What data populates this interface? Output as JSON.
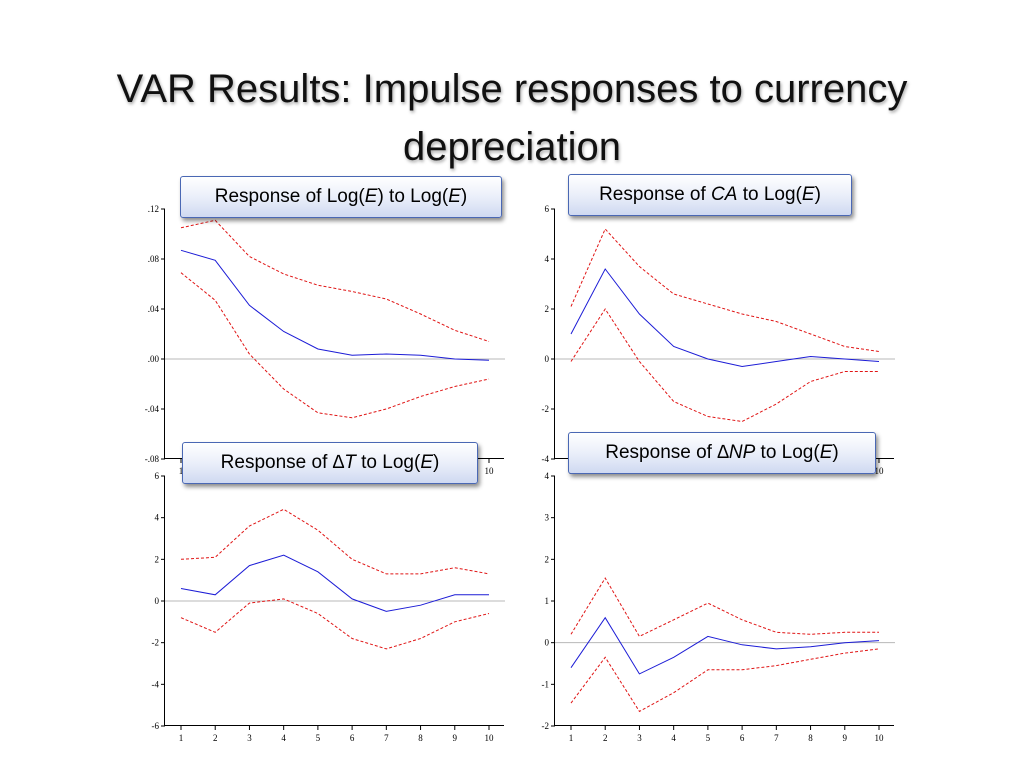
{
  "slide": {
    "title_line1": "VAR Results: Impulse responses to currency",
    "title_line2": "depreciation"
  },
  "colors": {
    "mean": "#1c1cd6",
    "band": "#e01515",
    "zero": "#b8b8b8",
    "axis": "#000000"
  },
  "chart_data": [
    {
      "type": "line",
      "label": {
        "prefix": "Response of ",
        "parts": [
          {
            "t": "Log(",
            "i": false
          },
          {
            "t": "E",
            "i": true
          },
          {
            "t": ") to Log(",
            "i": false
          },
          {
            "t": "E",
            "i": true
          },
          {
            "t": ")",
            "i": false
          }
        ]
      },
      "x": [
        1,
        2,
        3,
        4,
        5,
        6,
        7,
        8,
        9,
        10
      ],
      "ylim": [
        -0.08,
        0.12
      ],
      "yticks": [
        -0.08,
        -0.04,
        0.0,
        0.04,
        0.08,
        0.12
      ],
      "ytick_labels": [
        "-.08",
        "-.04",
        ".00",
        ".04",
        ".08",
        ".12"
      ],
      "series": [
        {
          "role": "upper",
          "values": [
            0.105,
            0.111,
            0.082,
            0.068,
            0.059,
            0.054,
            0.048,
            0.036,
            0.023,
            0.014
          ]
        },
        {
          "role": "mean",
          "values": [
            0.087,
            0.079,
            0.043,
            0.022,
            0.008,
            0.003,
            0.004,
            0.003,
            0.0,
            -0.001
          ]
        },
        {
          "role": "lower",
          "values": [
            0.069,
            0.047,
            0.004,
            -0.024,
            -0.043,
            -0.047,
            -0.04,
            -0.03,
            -0.022,
            -0.016
          ]
        }
      ]
    },
    {
      "type": "line",
      "label": {
        "prefix": "Response of ",
        "parts": [
          {
            "t": "CA",
            "i": true
          },
          {
            "t": " to Log(",
            "i": false
          },
          {
            "t": "E",
            "i": true
          },
          {
            "t": ")",
            "i": false
          }
        ]
      },
      "x": [
        1,
        2,
        3,
        4,
        5,
        6,
        7,
        8,
        9,
        10
      ],
      "ylim": [
        -4,
        6
      ],
      "yticks": [
        -4,
        -2,
        0,
        2,
        4,
        6
      ],
      "ytick_labels": [
        "-4",
        "-2",
        "0",
        "2",
        "4",
        "6"
      ],
      "series": [
        {
          "role": "upper",
          "values": [
            2.1,
            5.2,
            3.7,
            2.6,
            2.2,
            1.8,
            1.5,
            1.0,
            0.5,
            0.3
          ]
        },
        {
          "role": "mean",
          "values": [
            1.0,
            3.6,
            1.8,
            0.5,
            0.0,
            -0.3,
            -0.1,
            0.1,
            0.0,
            -0.1
          ]
        },
        {
          "role": "lower",
          "values": [
            -0.1,
            2.0,
            -0.1,
            -1.7,
            -2.3,
            -2.5,
            -1.8,
            -0.9,
            -0.5,
            -0.5
          ]
        }
      ]
    },
    {
      "type": "line",
      "label": {
        "prefix": "Response of ",
        "parts": [
          {
            "t": "∆T",
            "i": true
          },
          {
            "t": "  to Log(",
            "i": false
          },
          {
            "t": "E",
            "i": true
          },
          {
            "t": ")",
            "i": false
          }
        ]
      },
      "x": [
        1,
        2,
        3,
        4,
        5,
        6,
        7,
        8,
        9,
        10
      ],
      "ylim": [
        -6,
        6
      ],
      "yticks": [
        -6,
        -4,
        -2,
        0,
        2,
        4,
        6
      ],
      "ytick_labels": [
        "-6",
        "-4",
        "-2",
        "0",
        "2",
        "4",
        "6"
      ],
      "series": [
        {
          "role": "upper",
          "values": [
            2.0,
            2.1,
            3.6,
            4.4,
            3.4,
            2.0,
            1.3,
            1.3,
            1.6,
            1.3
          ]
        },
        {
          "role": "mean",
          "values": [
            0.6,
            0.3,
            1.7,
            2.2,
            1.4,
            0.1,
            -0.5,
            -0.2,
            0.3,
            0.3
          ]
        },
        {
          "role": "lower",
          "values": [
            -0.8,
            -1.5,
            -0.1,
            0.1,
            -0.6,
            -1.8,
            -2.3,
            -1.8,
            -1.0,
            -0.6
          ]
        }
      ]
    },
    {
      "type": "line",
      "label": {
        "prefix": "Response of ",
        "parts": [
          {
            "t": "∆NP",
            "i": true
          },
          {
            "t": "  to Log(",
            "i": false
          },
          {
            "t": "E",
            "i": true
          },
          {
            "t": ")",
            "i": false
          }
        ]
      },
      "x": [
        1,
        2,
        3,
        4,
        5,
        6,
        7,
        8,
        9,
        10
      ],
      "ylim": [
        -2,
        4
      ],
      "yticks": [
        -2,
        -1,
        0,
        1,
        2,
        3,
        4
      ],
      "ytick_labels": [
        "-2",
        "-1",
        "0",
        "1",
        "2",
        "3",
        "4"
      ],
      "series": [
        {
          "role": "upper",
          "values": [
            0.2,
            1.55,
            0.15,
            0.55,
            0.95,
            0.55,
            0.25,
            0.2,
            0.25,
            0.25
          ]
        },
        {
          "role": "mean",
          "values": [
            -0.6,
            0.6,
            -0.75,
            -0.35,
            0.15,
            -0.05,
            -0.15,
            -0.1,
            0.0,
            0.05
          ]
        },
        {
          "role": "lower",
          "values": [
            -1.45,
            -0.35,
            -1.65,
            -1.2,
            -0.65,
            -0.65,
            -0.55,
            -0.4,
            -0.25,
            -0.15
          ]
        }
      ]
    }
  ]
}
